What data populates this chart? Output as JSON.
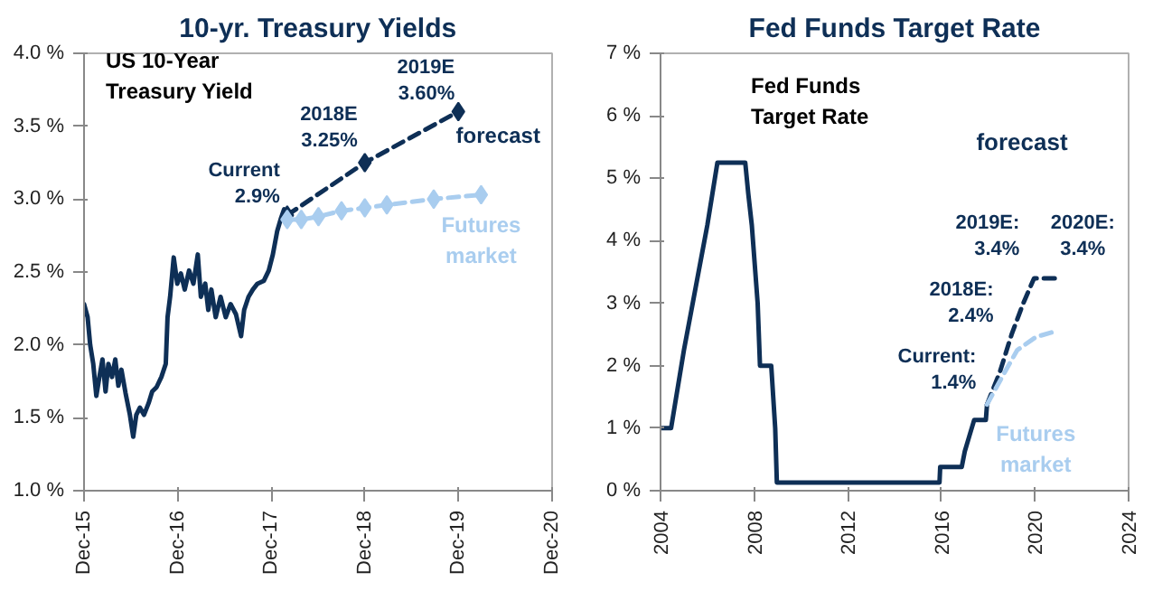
{
  "chart_data": [
    {
      "type": "line",
      "title": "10-yr. Treasury Yields",
      "xlim": [
        "2015-12",
        "2020-12"
      ],
      "xticks": [
        {
          "value": "2015-12",
          "label": "Dec-15"
        },
        {
          "value": "2016-12",
          "label": "Dec-16"
        },
        {
          "value": "2017-12",
          "label": "Dec-17"
        },
        {
          "value": "2018-12",
          "label": "Dec-18"
        },
        {
          "value": "2019-12",
          "label": "Dec-19"
        },
        {
          "value": "2020-12",
          "label": "Dec-20"
        }
      ],
      "ylim": [
        1.0,
        4.0
      ],
      "yticks": [
        {
          "value": 1.0,
          "label": "1.0 %"
        },
        {
          "value": 1.5,
          "label": "1.5 %"
        },
        {
          "value": 2.0,
          "label": "2.0 %"
        },
        {
          "value": 2.5,
          "label": "2.5 %"
        },
        {
          "value": 3.0,
          "label": "3.0 %"
        },
        {
          "value": 3.5,
          "label": "3.5 %"
        },
        {
          "value": 4.0,
          "label": "4.0 %"
        }
      ],
      "grid": false,
      "series": [
        {
          "color": "#0e2f56",
          "line_style": "solid",
          "marker": "none",
          "x": [
            "2015-12-01",
            "2015-12-15",
            "2015-12-25",
            "2016-01-06",
            "2016-01-18",
            "2016-01-30",
            "2016-02-11",
            "2016-02-23",
            "2016-03-05",
            "2016-03-19",
            "2016-04-01",
            "2016-04-13",
            "2016-04-25",
            "2016-05-11",
            "2016-05-28",
            "2016-06-10",
            "2016-06-22",
            "2016-07-06",
            "2016-07-22",
            "2016-08-09",
            "2016-08-23",
            "2016-09-09",
            "2016-09-28",
            "2016-10-15",
            "2016-10-22",
            "2016-11-01",
            "2016-11-15",
            "2016-11-29",
            "2016-12-13",
            "2016-12-28",
            "2017-01-14",
            "2017-01-31",
            "2017-02-17",
            "2017-03-01",
            "2017-03-18",
            "2017-03-30",
            "2017-04-11",
            "2017-04-28",
            "2017-05-17",
            "2017-06-06",
            "2017-06-25",
            "2017-07-16",
            "2017-08-05",
            "2017-08-17",
            "2017-09-03",
            "2017-09-20",
            "2017-10-08",
            "2017-11-02",
            "2017-11-21",
            "2017-12-07",
            "2017-12-24",
            "2018-01-08",
            "2018-01-20"
          ],
          "values": [
            2.28,
            2.19,
            2.0,
            1.87,
            1.65,
            1.78,
            1.9,
            1.68,
            1.87,
            1.78,
            1.9,
            1.72,
            1.83,
            1.67,
            1.52,
            1.37,
            1.52,
            1.57,
            1.52,
            1.6,
            1.68,
            1.71,
            1.78,
            1.87,
            2.19,
            2.33,
            2.6,
            2.42,
            2.49,
            2.38,
            2.51,
            2.42,
            2.62,
            2.33,
            2.42,
            2.24,
            2.38,
            2.19,
            2.33,
            2.19,
            2.28,
            2.21,
            2.06,
            2.24,
            2.33,
            2.38,
            2.42,
            2.44,
            2.51,
            2.62,
            2.78,
            2.87,
            2.93
          ]
        },
        {
          "name": "forecast",
          "color": "#0e2f56",
          "line_style": "dashed",
          "marker": "diamond",
          "x": [
            "2018-02-01",
            "2018-12-01",
            "2019-12-01"
          ],
          "values": [
            2.89,
            3.25,
            3.6
          ]
        },
        {
          "name": "Futures\nmarket",
          "color": "#a9cdef",
          "line_style": "dashed",
          "marker": "diamond",
          "x": [
            "2018-02-01",
            "2018-03-28",
            "2018-06-03",
            "2018-09-01",
            "2018-12-01",
            "2019-02-25",
            "2019-08-27",
            "2020-02-28"
          ],
          "values": [
            2.86,
            2.86,
            2.88,
            2.92,
            2.94,
            2.96,
            3.0,
            3.03
          ]
        }
      ],
      "annotations": [
        "US 10-Year\nTreasury Yield",
        {
          "text": "Current\n2.9%",
          "x": "2018-02-01",
          "y": 2.89
        },
        {
          "text": "2018E\n3.25%",
          "x": "2018-12-01",
          "y": 3.25
        },
        {
          "text": "2019E\n3.60%",
          "x": "2019-12-01",
          "y": 3.6
        }
      ]
    },
    {
      "type": "line",
      "title": "Fed Funds Target Rate",
      "xlim": [
        2004,
        2024
      ],
      "xticks": [
        2004,
        2008,
        2012,
        2016,
        2020,
        2024
      ],
      "ylim": [
        0,
        7
      ],
      "yticks": [
        {
          "value": 0,
          "label": "0 %"
        },
        {
          "value": 1,
          "label": "1 %"
        },
        {
          "value": 2,
          "label": "2 %"
        },
        {
          "value": 3,
          "label": "3 %"
        },
        {
          "value": 4,
          "label": "4 %"
        },
        {
          "value": 5,
          "label": "5 %"
        },
        {
          "value": 6,
          "label": "6 %"
        },
        {
          "value": 7,
          "label": "7 %"
        }
      ],
      "grid": false,
      "series": [
        {
          "color": "#0e2f56",
          "line_style": "solid",
          "marker": "none",
          "x": [
            2004.0,
            2004.45,
            2005.0,
            2005.5,
            2006.0,
            2006.43,
            2007.62,
            2007.75,
            2007.9,
            2008.15,
            2008.25,
            2008.73,
            2008.9,
            2008.97,
            2015.92,
            2015.95,
            2016.87,
            2017.0,
            2017.2,
            2017.4,
            2017.9,
            2017.95
          ],
          "values": [
            1.0,
            1.0,
            2.25,
            3.25,
            4.25,
            5.25,
            5.25,
            4.75,
            4.25,
            3.0,
            2.0,
            2.0,
            1.0,
            0.13,
            0.13,
            0.38,
            0.38,
            0.63,
            0.88,
            1.13,
            1.13,
            1.38
          ]
        },
        {
          "name": "forecast",
          "color": "#0e2f56",
          "line_style": "dashed",
          "marker": "none",
          "x": [
            2017.95,
            2018.5,
            2019.0,
            2019.5,
            2019.96,
            2020.96
          ],
          "values": [
            1.38,
            1.9,
            2.5,
            3.0,
            3.4,
            3.4
          ]
        },
        {
          "name": "Futures\nmarket",
          "color": "#a9cdef",
          "line_style": "dashed",
          "marker": "none",
          "x": [
            2017.95,
            2018.7,
            2019.24,
            2020.04,
            2020.96
          ],
          "values": [
            1.38,
            1.89,
            2.25,
            2.46,
            2.56
          ]
        }
      ],
      "annotations": [
        "Fed Funds\nTarget Rate",
        {
          "text": "Current:\n1.4%",
          "x": 2017.95,
          "y": 1.38
        },
        {
          "text": "2018E:\n2.4%",
          "x": 2019.0,
          "y": 2.5
        },
        {
          "text": "2019E:\n3.4%",
          "x": 2019.96,
          "y": 3.4
        },
        {
          "text": "2020E:\n3.4%",
          "x": 2020.96,
          "y": 3.4
        }
      ]
    }
  ]
}
